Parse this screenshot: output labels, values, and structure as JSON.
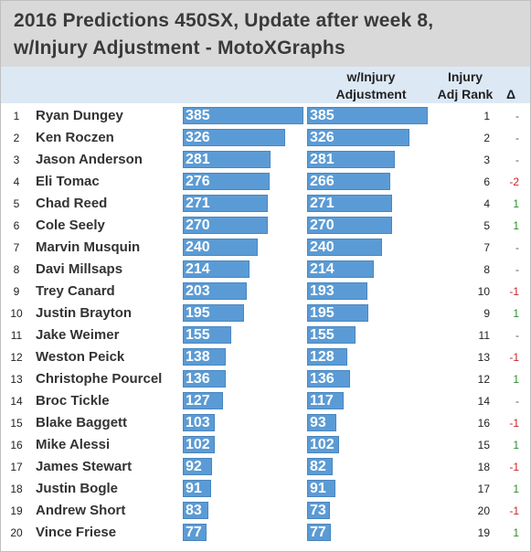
{
  "title": {
    "line1": "2016 Predictions 450SX, Update after week 8,",
    "line2": "w/Injury Adjustment - MotoXGraphs"
  },
  "headers": {
    "injury_adj_line1": "w/Injury",
    "injury_adj_line2": "Adjustment",
    "rank_line1": "Injury",
    "rank_line2": "Adj Rank",
    "delta": "Δ"
  },
  "colors": {
    "bar": "#5b9bd5",
    "delta_up": "#2e8b2e",
    "delta_down": "#cc2222",
    "delta_same": "#555555",
    "title_bg": "#d9d9d9",
    "header_bg": "#dce9f5"
  },
  "chart_data": {
    "type": "bar",
    "title": "2016 Predictions 450SX, Update after week 8, w/Injury Adjustment - MotoXGraphs",
    "categories": [
      "Ryan Dungey",
      "Ken Roczen",
      "Jason Anderson",
      "Eli Tomac",
      "Chad Reed",
      "Cole Seely",
      "Marvin Musquin",
      "Davi Millsaps",
      "Trey Canard",
      "Justin Brayton",
      "Jake Weimer",
      "Weston Peick",
      "Christophe Pourcel",
      "Broc Tickle",
      "Blake Baggett",
      "Mike Alessi",
      "James Stewart",
      "Justin Bogle",
      "Andrew Short",
      "Vince Friese"
    ],
    "positions": [
      "1",
      "2",
      "3",
      "4",
      "5",
      "6",
      "7",
      "8",
      "9",
      "10",
      "11",
      "12",
      "13",
      "14",
      "15",
      "16",
      "17",
      "18",
      "19",
      "20"
    ],
    "series": [
      {
        "values": [
          385,
          326,
          281,
          276,
          271,
          270,
          240,
          214,
          203,
          195,
          155,
          138,
          136,
          127,
          103,
          102,
          92,
          91,
          83,
          77
        ]
      },
      {
        "name": "w/Injury Adjustment",
        "values": [
          385,
          326,
          281,
          266,
          271,
          270,
          240,
          214,
          193,
          195,
          155,
          128,
          136,
          117,
          93,
          102,
          82,
          91,
          73,
          77
        ]
      }
    ],
    "injury_adj_rank": [
      "1",
      "2",
      "3",
      "6",
      "4",
      "5",
      "7",
      "8",
      "10",
      "9",
      "11",
      "13",
      "12",
      "14",
      "16",
      "15",
      "18",
      "17",
      "20",
      "19"
    ],
    "delta": [
      "-",
      "-",
      "-",
      "-2",
      "1",
      "1",
      "-",
      "-",
      "-1",
      "1",
      "-",
      "-1",
      "1",
      "-",
      "-1",
      "1",
      "-1",
      "1",
      "-1",
      "1"
    ],
    "xlim": [
      0,
      400
    ]
  }
}
